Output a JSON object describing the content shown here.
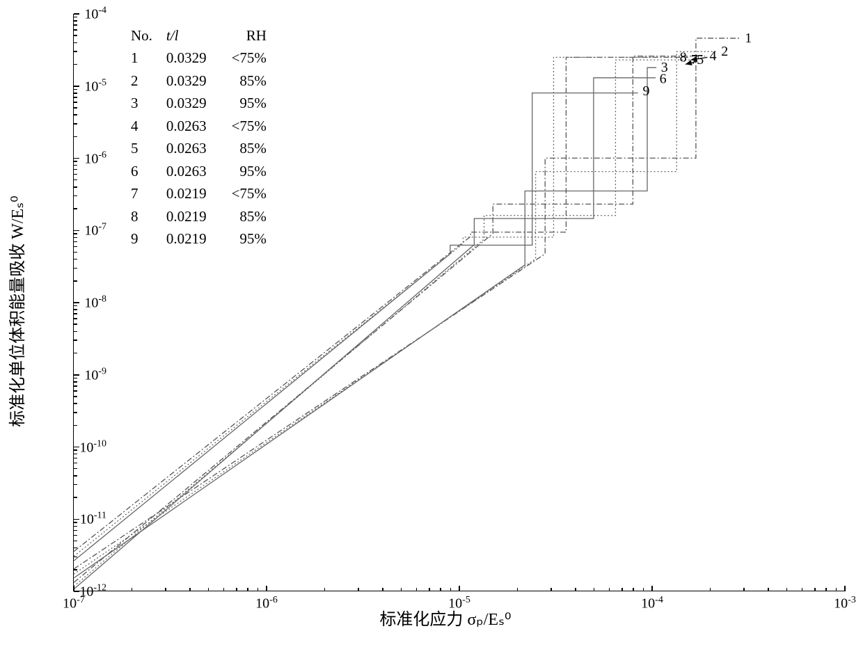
{
  "chart": {
    "type": "line",
    "background_color": "#ffffff",
    "axis_color": "#000000",
    "line_colors": {
      "solid": "#666666",
      "dotted": "#666666",
      "dashdot": "#555555"
    },
    "line_width": 1.3,
    "xscale": "log",
    "yscale": "log",
    "xlim": [
      1e-07,
      0.001
    ],
    "ylim": [
      1e-12,
      0.0001
    ],
    "xticks": [
      1e-07,
      1e-06,
      1e-05,
      0.0001,
      0.001
    ],
    "yticks": [
      1e-12,
      1e-11,
      1e-10,
      1e-09,
      1e-08,
      1e-07,
      1e-06,
      1e-05,
      0.0001
    ],
    "xticklabels": [
      "10⁻⁷",
      "10⁻⁶",
      "10⁻⁵",
      "10⁻⁴",
      "10⁻³"
    ],
    "yticklabels": [
      "10⁻¹²",
      "10⁻¹¹",
      "10⁻¹⁰",
      "10⁻⁹",
      "10⁻⁸",
      "10⁻⁷",
      "10⁻⁶",
      "10⁻⁵",
      "10⁻⁴"
    ],
    "xlabel": "标准化应力  σₚ/Eₛ⁰",
    "ylabel": "标准化单位体积能量吸收  W/Eₛ⁰",
    "label_fontsize": 24,
    "tick_fontsize": 20,
    "legend": {
      "position": "upper-left",
      "fontsize": 21,
      "headers": [
        "No.",
        "t/l",
        "RH"
      ],
      "rows": [
        [
          "1",
          "0.0329",
          "<75%"
        ],
        [
          "2",
          "0.0329",
          "85%"
        ],
        [
          "3",
          "0.0329",
          "95%"
        ],
        [
          "4",
          "0.0263",
          "<75%"
        ],
        [
          "5",
          "0.0263",
          "85%"
        ],
        [
          "6",
          "0.0263",
          "95%"
        ],
        [
          "7",
          "0.0219",
          "<75%"
        ],
        [
          "8",
          "0.0219",
          "85%"
        ],
        [
          "9",
          "0.0219",
          "95%"
        ]
      ]
    },
    "series": [
      {
        "id": 1,
        "style": "dashdot",
        "points": [
          [
            1e-07,
            2e-12
          ],
          [
            2.8e-05,
            4.7e-08
          ],
          [
            2.8e-05,
            1e-06
          ],
          [
            0.00017,
            1e-06
          ],
          [
            0.00017,
            4.6e-05
          ],
          [
            0.00029,
            4.6e-05
          ]
        ],
        "label_xy": [
          0.000305,
          4.6e-05
        ]
      },
      {
        "id": 2,
        "style": "dotted",
        "points": [
          [
            1e-07,
            1.7e-12
          ],
          [
            2.5e-05,
            4e-08
          ],
          [
            2.5e-05,
            6.5e-07
          ],
          [
            0.000135,
            6.5e-07
          ],
          [
            0.000135,
            3e-05
          ],
          [
            0.00022,
            3e-05
          ]
        ],
        "label_xy": [
          0.00023,
          3e-05
        ]
      },
      {
        "id": 3,
        "style": "solid",
        "points": [
          [
            1e-07,
            1.5e-12
          ],
          [
            2.2e-05,
            3.3e-08
          ],
          [
            2.2e-05,
            3.5e-07
          ],
          [
            9.5e-05,
            3.5e-07
          ],
          [
            9.5e-05,
            1.8e-05
          ],
          [
            0.000106,
            1.8e-05
          ]
        ],
        "label_xy": [
          0.000112,
          1.8e-05
        ]
      },
      {
        "id": 4,
        "style": "dashdot",
        "points": [
          [
            1e-07,
            1.3e-12
          ],
          [
            1.5e-05,
            9e-08
          ],
          [
            1.5e-05,
            2.3e-07
          ],
          [
            8e-05,
            2.3e-07
          ],
          [
            8e-05,
            2.6e-05
          ],
          [
            0.00019,
            2.6e-05
          ]
        ],
        "label_xy": [
          0.0002,
          2.6e-05
        ]
      },
      {
        "id": 5,
        "style": "dotted",
        "points": [
          [
            1e-07,
            1.15e-12
          ],
          [
            1.35e-05,
            7.5e-08
          ],
          [
            1.35e-05,
            1.6e-07
          ],
          [
            6.5e-05,
            1.6e-07
          ],
          [
            6.5e-05,
            2.3e-05
          ],
          [
            0.000165,
            2.3e-05
          ]
        ],
        "label_xy": [
          0.000172,
          2.3e-05
        ]
      },
      {
        "id": 6,
        "style": "solid",
        "points": [
          [
            1e-07,
            1.05e-12
          ],
          [
            1.2e-05,
            6.3e-08
          ],
          [
            1.2e-05,
            1.45e-07
          ],
          [
            5e-05,
            1.45e-07
          ],
          [
            5e-05,
            1.3e-05
          ],
          [
            0.000105,
            1.3e-05
          ]
        ],
        "label_xy": [
          0.00011,
          1.25e-05
        ]
      },
      {
        "id": 7,
        "style": "dashdot",
        "points": [
          [
            1e-07,
            3.5e-12
          ],
          [
            1.15e-05,
            8.2e-08
          ],
          [
            1.15e-05,
            9.4e-08
          ],
          [
            3.6e-05,
            9.4e-08
          ],
          [
            3.6e-05,
            2.5e-05
          ],
          [
            0.000155,
            2.5e-05
          ]
        ],
        "label_xy": [
          0.00016,
          2.3e-05
        ]
      },
      {
        "id": 8,
        "style": "dotted",
        "points": [
          [
            1e-07,
            3e-12
          ],
          [
            1.05e-05,
            6.5e-08
          ],
          [
            1.05e-05,
            8e-08
          ],
          [
            3.1e-05,
            8e-08
          ],
          [
            3.1e-05,
            2.5e-05
          ],
          [
            0.000135,
            2.5e-05
          ]
        ],
        "label_xy": [
          0.00014,
          2.5e-05
        ]
      },
      {
        "id": 9,
        "style": "solid",
        "points": [
          [
            1e-07,
            2.6e-12
          ],
          [
            9e-06,
            4.7e-08
          ],
          [
            9e-06,
            6.2e-08
          ],
          [
            2.4e-05,
            6.2e-08
          ],
          [
            2.4e-05,
            8e-06
          ],
          [
            8.5e-05,
            8e-06
          ]
        ],
        "label_xy": [
          9e-05,
          8.5e-06
        ]
      }
    ],
    "annotation_arrows": [
      {
        "from": [
          0.000195,
          2.5e-05
        ],
        "to": [
          0.00016,
          2.3e-05
        ]
      },
      {
        "from": [
          0.000172,
          2.2e-05
        ],
        "to": [
          0.00015,
          2e-05
        ]
      }
    ]
  }
}
